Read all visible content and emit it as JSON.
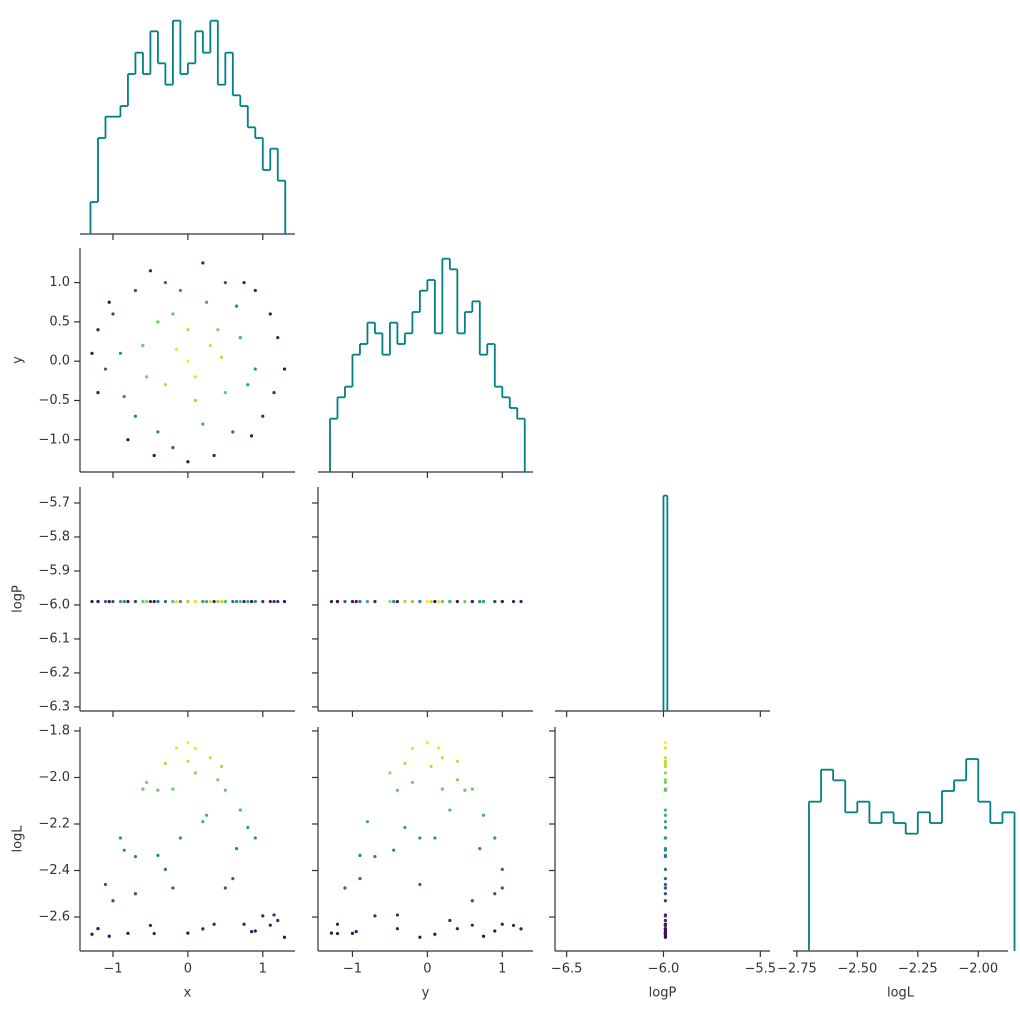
{
  "chart_data": {
    "type": "corner",
    "color": "#008080",
    "colormap": "viridis",
    "color_lim": [
      -2.7,
      -1.85
    ],
    "variables": [
      {
        "name": "x",
        "xlim": [
          -1.44,
          1.43
        ],
        "xticks": [
          {
            "value": -1,
            "label": "−1"
          },
          0,
          1
        ],
        "hist": {
          "bins": [
            -1.3,
            -1.2,
            -1.1,
            -1.0,
            -0.9,
            -0.8,
            -0.7,
            -0.6,
            -0.5,
            -0.4,
            -0.3,
            -0.2,
            -0.1,
            0.0,
            0.1,
            0.2,
            0.3,
            0.4,
            0.5,
            0.6,
            0.7,
            0.8,
            0.9,
            1.0,
            1.1,
            1.2,
            1.3
          ],
          "counts": [
            3,
            9,
            11,
            11,
            12,
            15,
            17,
            15,
            19,
            16,
            14,
            20,
            15,
            16,
            19,
            17,
            20,
            14,
            17,
            13,
            12,
            10,
            9,
            6,
            8,
            5
          ],
          "ylim": [
            0,
            21
          ]
        }
      },
      {
        "name": "y",
        "xlim": [
          -1.46,
          1.41
        ],
        "xticks": [
          {
            "value": -1,
            "label": "−1"
          },
          0,
          1
        ],
        "ylim": [
          -1.41,
          1.44
        ],
        "yticks": [
          {
            "value": -1,
            "label": "−1.0"
          },
          {
            "value": -0.5,
            "label": "−0.5"
          },
          {
            "value": 0,
            "label": "0.0"
          },
          0.5,
          {
            "value": 1,
            "label": "1.0"
          }
        ],
        "hist": {
          "bins": [
            -1.3,
            -1.2,
            -1.1,
            -1.0,
            -0.9,
            -0.8,
            -0.7,
            -0.6,
            -0.5,
            -0.4,
            -0.3,
            -0.2,
            -0.1,
            0.0,
            0.1,
            0.2,
            0.3,
            0.4,
            0.5,
            0.6,
            0.7,
            0.8,
            0.9,
            1.0,
            1.1,
            1.2,
            1.3
          ],
          "counts": [
            5,
            7,
            8,
            11,
            12,
            14,
            13,
            11,
            14,
            12,
            13,
            15,
            17,
            18,
            13,
            20,
            19,
            13,
            15,
            16,
            11,
            12,
            8,
            7,
            6,
            5
          ],
          "ylim": [
            0,
            21
          ]
        }
      },
      {
        "name": "logP",
        "xlim": [
          -6.56,
          -5.45
        ],
        "xticks": [
          {
            "value": -6.5,
            "label": "−6.5"
          },
          {
            "value": -6.0,
            "label": "−6.0"
          },
          {
            "value": -5.5,
            "label": "−5.5"
          }
        ],
        "ylim": [
          -6.312,
          -5.653
        ],
        "yticks": [
          {
            "value": -6.3,
            "label": "−6.3"
          },
          {
            "value": -6.2,
            "label": "−6.2"
          },
          {
            "value": -6.1,
            "label": "−6.1"
          },
          {
            "value": -6.0,
            "label": "−6.0"
          },
          {
            "value": -5.9,
            "label": "−5.9"
          },
          {
            "value": -5.8,
            "label": "−5.8"
          },
          {
            "value": -5.7,
            "label": "−5.7"
          }
        ],
        "hist": {
          "bins": [
            -6.0,
            -5.98
          ],
          "counts": [
            50
          ],
          "ylim": [
            0,
            52
          ]
        }
      },
      {
        "name": "logL",
        "xlim": [
          -2.766,
          -1.877
        ],
        "xticks": [
          {
            "value": -2.75,
            "label": "−2.75"
          },
          {
            "value": -2.5,
            "label": "−2.50"
          },
          {
            "value": -2.25,
            "label": "−2.25"
          },
          {
            "value": -2.0,
            "label": "−2.00"
          }
        ],
        "ylim": [
          -2.746,
          -1.783
        ],
        "yticks": [
          {
            "value": -2.6,
            "label": "−2.6"
          },
          {
            "value": -2.4,
            "label": "−2.4"
          },
          {
            "value": -2.2,
            "label": "−2.2"
          },
          {
            "value": -2.0,
            "label": "−2.0"
          },
          {
            "value": -1.8,
            "label": "−1.8"
          }
        ],
        "hist": {
          "bins": [
            -2.7,
            -2.65,
            -2.6,
            -2.55,
            -2.5,
            -2.45,
            -2.4,
            -2.35,
            -2.3,
            -2.25,
            -2.2,
            -2.15,
            -2.1,
            -2.05,
            -2.0,
            -1.95,
            -1.9,
            -1.85
          ],
          "counts": [
            14,
            17,
            16,
            13,
            14,
            12,
            13,
            12,
            11,
            13,
            12,
            15,
            16,
            18,
            14,
            12,
            13
          ],
          "ylim": [
            0,
            21
          ]
        }
      }
    ],
    "samples": {
      "x": [
        0.0,
        0.3,
        -0.4,
        0.8,
        -1.0,
        1.2,
        -0.2,
        0.5,
        -1.2,
        0.9,
        -0.7,
        0.1,
        -0.1,
        0.6,
        -0.9,
        1.0,
        -0.5,
        0.2,
        -1.28,
        1.29,
        0.0,
        -0.8,
        0.4,
        -0.3,
        0.7,
        -0.6,
        0.2,
        -0.2,
        1.1,
        -1.1,
        0.5,
        -0.4,
        0.9,
        -0.7,
        0.0,
        0.1,
        -0.15,
        0.85,
        -1.05,
        0.35,
        -0.55,
        0.65,
        -0.85,
        0.25,
        1.15,
        -0.3,
        0.45,
        -1.2,
        0.75,
        -0.45
      ],
      "y": [
        0.0,
        0.2,
        0.5,
        -0.3,
        0.6,
        0.3,
        -1.1,
        1.0,
        -0.4,
        0.9,
        -0.7,
        -0.5,
        0.9,
        -0.9,
        0.1,
        -0.7,
        1.15,
        1.25,
        0.1,
        -0.1,
        -1.28,
        -1.0,
        0.4,
        -0.3,
        0.3,
        0.2,
        -0.8,
        0.6,
        0.6,
        -0.1,
        -0.4,
        -0.9,
        -0.1,
        0.9,
        0.4,
        -0.2,
        0.15,
        -0.95,
        0.75,
        -1.2,
        -0.2,
        0.7,
        -0.45,
        0.75,
        -0.4,
        1.0,
        0.05,
        0.4,
        1.0,
        -1.2
      ],
      "logP": [
        -5.99,
        -5.99,
        -5.99,
        -5.99,
        -5.99,
        -5.99,
        -5.99,
        -5.99,
        -5.99,
        -5.99,
        -5.99,
        -5.99,
        -5.99,
        -5.99,
        -5.99,
        -5.99,
        -5.99,
        -5.99,
        -5.99,
        -5.99,
        -5.99,
        -5.99,
        -5.99,
        -5.99,
        -5.99,
        -5.99,
        -5.99,
        -5.99,
        -5.99,
        -5.99,
        -5.99,
        -5.99,
        -5.99,
        -5.99,
        -5.99,
        -5.99,
        -5.99,
        -5.99,
        -5.99,
        -5.99,
        -5.99,
        -5.99,
        -5.99,
        -5.99,
        -5.99,
        -5.99,
        -5.99,
        -5.99,
        -5.99,
        -5.99
      ],
      "logL": [
        -1.85,
        -1.915,
        -2.055,
        -2.215,
        -2.53,
        -2.615,
        -2.475,
        -2.475,
        -2.65,
        -2.66,
        -2.34,
        -1.98,
        -2.26,
        -2.435,
        -2.26,
        -2.595,
        -2.636,
        -2.651,
        -2.674,
        -2.687,
        -2.669,
        -2.67,
        -2.01,
        -1.94,
        -2.14,
        -2.05,
        -2.19,
        -2.05,
        -2.635,
        -2.46,
        -2.055,
        -2.335,
        -2.26,
        -2.5,
        -1.93,
        -1.875,
        -1.8725,
        -2.6625,
        -2.6825,
        -2.631,
        -2.021,
        -2.306,
        -2.3125,
        -2.1625,
        -2.591,
        -2.395,
        -1.9525,
        -2.65,
        -2.631,
        -2.671
      ]
    }
  }
}
